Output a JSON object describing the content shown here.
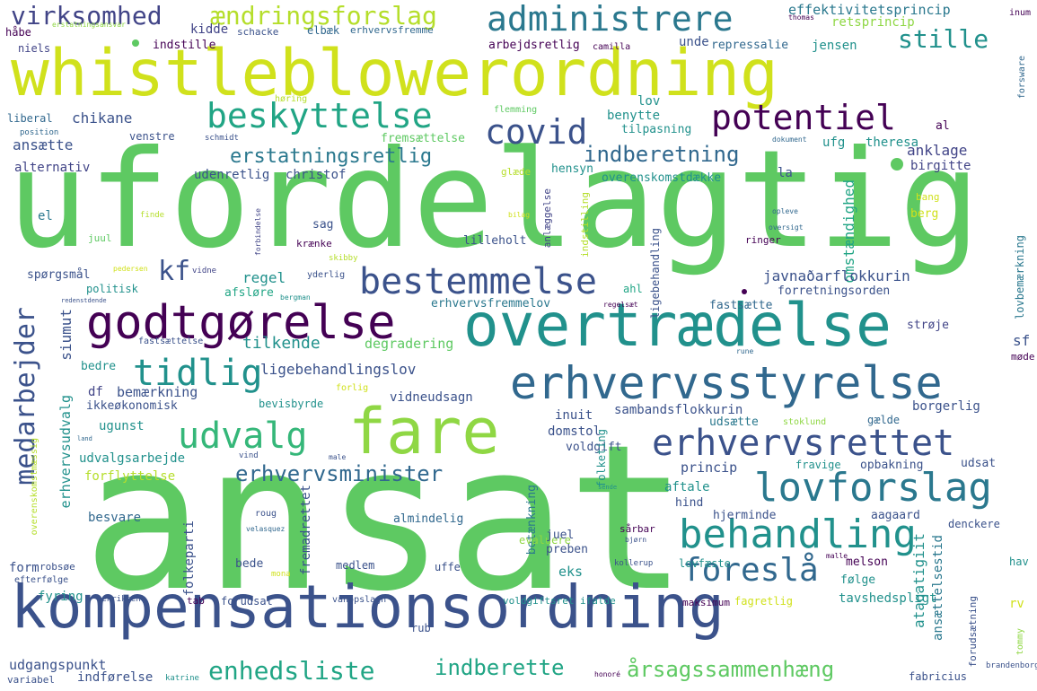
{
  "words": [
    {
      "text": "ansat",
      "color": "#5ec962"
    },
    {
      "text": "ufordelagtig",
      "color": "#5ec962"
    },
    {
      "text": "whistleblowerordning",
      "color": "#d0e11c"
    },
    {
      "text": "kompensationsordning",
      "color": "#3b528b"
    },
    {
      "text": "overtrædelse",
      "color": "#21918c"
    },
    {
      "text": "fare",
      "color": "#8fd744"
    },
    {
      "text": "godtgørelse",
      "color": "#440154"
    },
    {
      "text": "erhvervsstyrelse",
      "color": "#31688e"
    },
    {
      "text": "bestemmelse",
      "color": "#3b528b"
    },
    {
      "text": "administrere",
      "color": "#2a788e"
    },
    {
      "text": "beskyttelse",
      "color": "#21a585"
    },
    {
      "text": "potentiel",
      "color": "#440154"
    },
    {
      "text": "covid",
      "color": "#3b528b"
    },
    {
      "text": "tidlig",
      "color": "#21918c"
    },
    {
      "text": "udvalg",
      "color": "#35b779"
    },
    {
      "text": "erhvervsrettet",
      "color": "#3b528b"
    },
    {
      "text": "lovforslag",
      "color": "#2a788e"
    },
    {
      "text": "behandling",
      "color": "#21918c"
    },
    {
      "text": "foreslå",
      "color": "#31688e"
    },
    {
      "text": "virksomhed",
      "color": "#414487"
    },
    {
      "text": "ændringsforslag",
      "color": "#b5de2b"
    },
    {
      "text": "stille",
      "color": "#21918c"
    },
    {
      "text": "indberetning",
      "color": "#31688e"
    },
    {
      "text": "erstatningsretlig",
      "color": "#2a788e"
    },
    {
      "text": "erhvervsminister",
      "color": "#31688e"
    },
    {
      "text": "enhedsliste",
      "color": "#21a585"
    },
    {
      "text": "indberette",
      "color": "#21a585"
    },
    {
      "text": "årsagssammenhæng",
      "color": "#5ec962"
    },
    {
      "text": "medarbejder",
      "color": "#3b528b"
    },
    {
      "text": "kf",
      "color": "#3b528b"
    },
    {
      "text": "effektivitetsprincip",
      "color": "#2a788e"
    },
    {
      "text": "retsprincip",
      "color": "#8fd744"
    },
    {
      "text": "inum",
      "color": "#440154"
    },
    {
      "text": "kidde",
      "color": "#414487"
    },
    {
      "text": "schacke",
      "color": "#3b528b"
    },
    {
      "text": "elbæk",
      "color": "#31688e"
    },
    {
      "text": "erhvervsfremme",
      "color": "#31688e"
    },
    {
      "text": "thomas",
      "color": "#440154"
    },
    {
      "text": "håbe",
      "color": "#440154"
    },
    {
      "text": "niels",
      "color": "#414487"
    },
    {
      "text": "erstatningsansvar",
      "color": "#8fd744"
    },
    {
      "text": "indstille",
      "color": "#440154"
    },
    {
      "text": "arbejdsretlig",
      "color": "#440154"
    },
    {
      "text": "camilla",
      "color": "#440154"
    },
    {
      "text": "unde",
      "color": "#3b528b"
    },
    {
      "text": "repressalie",
      "color": "#31688e"
    },
    {
      "text": "jensen",
      "color": "#21918c"
    },
    {
      "text": "høring",
      "color": "#b5de2b"
    },
    {
      "text": "forsware",
      "color": "#31688e"
    },
    {
      "text": "liberal",
      "color": "#31688e"
    },
    {
      "text": "position",
      "color": "#31688e"
    },
    {
      "text": "chikane",
      "color": "#3b528b"
    },
    {
      "text": "flemming",
      "color": "#5ec962"
    },
    {
      "text": "lov",
      "color": "#21918c"
    },
    {
      "text": "benytte",
      "color": "#21918c"
    },
    {
      "text": "tilpasning",
      "color": "#21918c"
    },
    {
      "text": "al",
      "color": "#440154"
    },
    {
      "text": "dokument",
      "color": "#31688e"
    },
    {
      "text": "ufg",
      "color": "#21918c"
    },
    {
      "text": "theresa",
      "color": "#21918c"
    },
    {
      "text": "ansætte",
      "color": "#3b528b"
    },
    {
      "text": "venstre",
      "color": "#3b528b"
    },
    {
      "text": "schmidt",
      "color": "#3b528b"
    },
    {
      "text": "fremsættelse",
      "color": "#5ec962"
    },
    {
      "text": "anklage",
      "color": "#414487"
    },
    {
      "text": "alternativ",
      "color": "#414487"
    },
    {
      "text": "udenretlig",
      "color": "#3b528b"
    },
    {
      "text": "christof",
      "color": "#3b528b"
    },
    {
      "text": "glæde",
      "color": "#b5de2b"
    },
    {
      "text": "hensyn",
      "color": "#21918c"
    },
    {
      "text": "la",
      "color": "#3b528b"
    },
    {
      "text": "overenskomstdække",
      "color": "#21918c"
    },
    {
      "text": "birgitte",
      "color": "#414487"
    },
    {
      "text": "el",
      "color": "#2a788e"
    },
    {
      "text": "finde",
      "color": "#b5de2b"
    },
    {
      "text": "forbindelse",
      "color": "#414487"
    },
    {
      "text": "anlæggelse",
      "color": "#414487"
    },
    {
      "text": "indstilling",
      "color": "#b5de2b"
    },
    {
      "text": "bilag",
      "color": "#d0e11c"
    },
    {
      "text": "omstændighed",
      "color": "#21a585"
    },
    {
      "text": "opleve",
      "color": "#31688e"
    },
    {
      "text": "oversigt",
      "color": "#31688e"
    },
    {
      "text": "bang",
      "color": "#d0e11c"
    },
    {
      "text": "berg",
      "color": "#d0e11c"
    },
    {
      "text": "sag",
      "color": "#3b528b"
    },
    {
      "text": "lilleholt",
      "color": "#3b528b"
    },
    {
      "text": "ringer",
      "color": "#440154"
    },
    {
      "text": "juul",
      "color": "#5ec962"
    },
    {
      "text": "krænke",
      "color": "#440154"
    },
    {
      "text": "ligebehandling",
      "color": "#3b528b"
    },
    {
      "text": "spørgsmål",
      "color": "#3b528b"
    },
    {
      "text": "pedersen",
      "color": "#d0e11c"
    },
    {
      "text": "vidne",
      "color": "#414487"
    },
    {
      "text": "skibby",
      "color": "#b5de2b"
    },
    {
      "text": "yderlig",
      "color": "#3b528b"
    },
    {
      "text": "regel",
      "color": "#21918c"
    },
    {
      "text": "javnaðarflokkurin",
      "color": "#3b528b"
    },
    {
      "text": "politisk",
      "color": "#21918c"
    },
    {
      "text": "afsløre",
      "color": "#21a585"
    },
    {
      "text": "bergman",
      "color": "#21918c"
    },
    {
      "text": "ahl",
      "color": "#21a585"
    },
    {
      "text": "forretningsorden",
      "color": "#3b528b"
    },
    {
      "text": "redenstdende",
      "color": "#3b528b"
    },
    {
      "text": "erhvervsfremmelov",
      "color": "#2a788e"
    },
    {
      "text": "regelsæt",
      "color": "#440154"
    },
    {
      "text": "fastsætte",
      "color": "#31688e"
    },
    {
      "text": "lovbemærkning",
      "color": "#2a788e"
    },
    {
      "text": "siumut",
      "color": "#3b528b"
    },
    {
      "text": "fastsættelse",
      "color": "#3b528b"
    },
    {
      "text": "strøje",
      "color": "#414487"
    },
    {
      "text": "tilkende",
      "color": "#21918c"
    },
    {
      "text": "degradering",
      "color": "#5ec962"
    },
    {
      "text": "rune",
      "color": "#31688e"
    },
    {
      "text": "sf",
      "color": "#3b528b"
    },
    {
      "text": "møde",
      "color": "#440154"
    },
    {
      "text": "bedre",
      "color": "#21918c"
    },
    {
      "text": "ligebehandlingslov",
      "color": "#3b528b"
    },
    {
      "text": "df",
      "color": "#414487"
    },
    {
      "text": "bemærkning",
      "color": "#3b528b"
    },
    {
      "text": "forlig",
      "color": "#d0e11c"
    },
    {
      "text": "vidneudsagn",
      "color": "#3b528b"
    },
    {
      "text": "ikkeøkonomisk",
      "color": "#3b528b"
    },
    {
      "text": "bevisbyrde",
      "color": "#21918c"
    },
    {
      "text": "sambandsflokkurin",
      "color": "#3b528b"
    },
    {
      "text": "inuit",
      "color": "#3b528b"
    },
    {
      "text": "udsætte",
      "color": "#2a788e"
    },
    {
      "text": "stoklund",
      "color": "#8fd744"
    },
    {
      "text": "borgerlig",
      "color": "#3b528b"
    },
    {
      "text": "gælde",
      "color": "#31688e"
    },
    {
      "text": "ugunst",
      "color": "#21918c"
    },
    {
      "text": "erhvervsudvalg",
      "color": "#21918c"
    },
    {
      "text": "land",
      "color": "#31688e"
    },
    {
      "text": "domstol",
      "color": "#3b528b"
    },
    {
      "text": "voldgift",
      "color": "#3b528b"
    },
    {
      "text": "udvalgsarbejde",
      "color": "#21918c"
    },
    {
      "text": "forflyttelse",
      "color": "#b5de2b"
    },
    {
      "text": "vind",
      "color": "#3b528b"
    },
    {
      "text": "male",
      "color": "#3b528b"
    },
    {
      "text": "folketing",
      "color": "#21918c"
    },
    {
      "text": "princip",
      "color": "#3b528b"
    },
    {
      "text": "fravige",
      "color": "#21918c"
    },
    {
      "text": "opbakning",
      "color": "#3b528b"
    },
    {
      "text": "udsat",
      "color": "#3b528b"
    },
    {
      "text": "overenskomstmæssig",
      "color": "#b5de2b"
    },
    {
      "text": "aftale",
      "color": "#21918c"
    },
    {
      "text": "sende",
      "color": "#21918c"
    },
    {
      "text": "hind",
      "color": "#3b528b"
    },
    {
      "text": "besvare",
      "color": "#31688e"
    },
    {
      "text": "folkeparti",
      "color": "#3b528b"
    },
    {
      "text": "fremadrettet",
      "color": "#3b528b"
    },
    {
      "text": "roug",
      "color": "#3b528b"
    },
    {
      "text": "velasquez",
      "color": "#31688e"
    },
    {
      "text": "almindelig",
      "color": "#31688e"
    },
    {
      "text": "betænkning",
      "color": "#2a788e"
    },
    {
      "text": "hjerminde",
      "color": "#3b528b"
    },
    {
      "text": "aagaard",
      "color": "#3b528b"
    },
    {
      "text": "denckere",
      "color": "#3b528b"
    },
    {
      "text": "ansættelsestid",
      "color": "#2a788e"
    },
    {
      "text": "sårbar",
      "color": "#440154"
    },
    {
      "text": "bjørn",
      "color": "#3b528b"
    },
    {
      "text": "evaluere",
      "color": "#8fd744"
    },
    {
      "text": "juel",
      "color": "#3b528b"
    },
    {
      "text": "preben",
      "color": "#3b528b"
    },
    {
      "text": "form",
      "color": "#3b528b"
    },
    {
      "text": "robsøe",
      "color": "#3b528b"
    },
    {
      "text": "efterfølge",
      "color": "#3b528b"
    },
    {
      "text": "bede",
      "color": "#3b528b"
    },
    {
      "text": "mona",
      "color": "#d0e11c"
    },
    {
      "text": "medlem",
      "color": "#3b528b"
    },
    {
      "text": "eks",
      "color": "#21918c"
    },
    {
      "text": "kollerup",
      "color": "#3b528b"
    },
    {
      "text": "lovfæste",
      "color": "#21918c"
    },
    {
      "text": "malle",
      "color": "#440154"
    },
    {
      "text": "ataqatigiit",
      "color": "#21918c"
    },
    {
      "text": "melson",
      "color": "#440154"
    },
    {
      "text": "følge",
      "color": "#21918c"
    },
    {
      "text": "hav",
      "color": "#21918c"
    },
    {
      "text": "uffe",
      "color": "#3b528b"
    },
    {
      "text": "fyring",
      "color": "#21918c"
    },
    {
      "text": "henriksen",
      "color": "#3b528b"
    },
    {
      "text": "tab",
      "color": "#440154"
    },
    {
      "text": "forudsat",
      "color": "#3b528b"
    },
    {
      "text": "vanopslagh",
      "color": "#3b528b"
    },
    {
      "text": "voldgiftsret",
      "color": "#21918c"
    },
    {
      "text": "ifalde",
      "color": "#21918c"
    },
    {
      "text": "maksimum",
      "color": "#440154"
    },
    {
      "text": "fagretlig",
      "color": "#d0e11c"
    },
    {
      "text": "tavshedspligt",
      "color": "#21918c"
    },
    {
      "text": "rv",
      "color": "#d0e11c"
    },
    {
      "text": "rub",
      "color": "#3b528b"
    },
    {
      "text": "forudsætning",
      "color": "#3b528b"
    },
    {
      "text": "tommy",
      "color": "#8fd744"
    },
    {
      "text": "udgangspunkt",
      "color": "#3b528b"
    },
    {
      "text": "variabel",
      "color": "#3b528b"
    },
    {
      "text": "indførelse",
      "color": "#3b528b"
    },
    {
      "text": "katrine",
      "color": "#21918c"
    },
    {
      "text": "honoré",
      "color": "#440154"
    },
    {
      "text": "fabricius",
      "color": "#3b528b"
    },
    {
      "text": "brandenborg",
      "color": "#3b528b"
    }
  ]
}
